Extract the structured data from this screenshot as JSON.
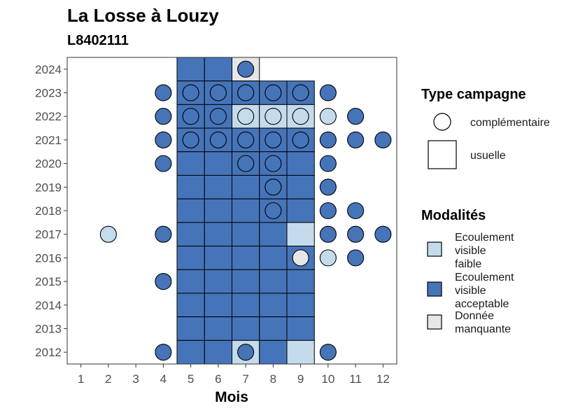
{
  "chart_data": {
    "type": "heatmap",
    "title": "La Losse à Louzy",
    "subtitle": "L8402111",
    "xlabel": "Mois",
    "ylabel": "",
    "x_ticks": [
      1,
      2,
      3,
      4,
      5,
      6,
      7,
      8,
      9,
      10,
      11,
      12
    ],
    "y_ticks": [
      2012,
      2013,
      2014,
      2015,
      2016,
      2017,
      2018,
      2019,
      2020,
      2021,
      2022,
      2023,
      2024
    ],
    "xlim": [
      0.5,
      12.5
    ],
    "ylim": [
      2011.5,
      2024.5
    ],
    "grid": false,
    "colors": {
      "Ecoulement visible faible": "#c4dbec",
      "Ecoulement visible acceptable": "#4674b9",
      "Donnée manquante": "#e6e6e6"
    },
    "usuelle": [
      {
        "year": 2024,
        "month": 5,
        "m": "acceptable"
      },
      {
        "year": 2024,
        "month": 6,
        "m": "acceptable"
      },
      {
        "year": 2024,
        "month": 7,
        "m": "manquante"
      },
      {
        "year": 2023,
        "month": 5,
        "m": "acceptable"
      },
      {
        "year": 2023,
        "month": 6,
        "m": "acceptable"
      },
      {
        "year": 2023,
        "month": 7,
        "m": "acceptable"
      },
      {
        "year": 2023,
        "month": 8,
        "m": "acceptable"
      },
      {
        "year": 2023,
        "month": 9,
        "m": "acceptable"
      },
      {
        "year": 2022,
        "month": 5,
        "m": "acceptable"
      },
      {
        "year": 2022,
        "month": 6,
        "m": "acceptable"
      },
      {
        "year": 2022,
        "month": 7,
        "m": "faible"
      },
      {
        "year": 2022,
        "month": 8,
        "m": "faible"
      },
      {
        "year": 2022,
        "month": 9,
        "m": "faible"
      },
      {
        "year": 2021,
        "month": 5,
        "m": "acceptable"
      },
      {
        "year": 2021,
        "month": 6,
        "m": "acceptable"
      },
      {
        "year": 2021,
        "month": 7,
        "m": "acceptable"
      },
      {
        "year": 2021,
        "month": 8,
        "m": "acceptable"
      },
      {
        "year": 2021,
        "month": 9,
        "m": "acceptable"
      },
      {
        "year": 2020,
        "month": 5,
        "m": "acceptable"
      },
      {
        "year": 2020,
        "month": 6,
        "m": "acceptable"
      },
      {
        "year": 2020,
        "month": 7,
        "m": "acceptable"
      },
      {
        "year": 2020,
        "month": 8,
        "m": "acceptable"
      },
      {
        "year": 2020,
        "month": 9,
        "m": "acceptable"
      },
      {
        "year": 2019,
        "month": 5,
        "m": "acceptable"
      },
      {
        "year": 2019,
        "month": 6,
        "m": "acceptable"
      },
      {
        "year": 2019,
        "month": 7,
        "m": "acceptable"
      },
      {
        "year": 2019,
        "month": 8,
        "m": "acceptable"
      },
      {
        "year": 2019,
        "month": 9,
        "m": "acceptable"
      },
      {
        "year": 2018,
        "month": 5,
        "m": "acceptable"
      },
      {
        "year": 2018,
        "month": 6,
        "m": "acceptable"
      },
      {
        "year": 2018,
        "month": 7,
        "m": "acceptable"
      },
      {
        "year": 2018,
        "month": 8,
        "m": "acceptable"
      },
      {
        "year": 2018,
        "month": 9,
        "m": "acceptable"
      },
      {
        "year": 2017,
        "month": 5,
        "m": "acceptable"
      },
      {
        "year": 2017,
        "month": 6,
        "m": "acceptable"
      },
      {
        "year": 2017,
        "month": 7,
        "m": "acceptable"
      },
      {
        "year": 2017,
        "month": 8,
        "m": "acceptable"
      },
      {
        "year": 2017,
        "month": 9,
        "m": "faible"
      },
      {
        "year": 2016,
        "month": 5,
        "m": "acceptable"
      },
      {
        "year": 2016,
        "month": 6,
        "m": "acceptable"
      },
      {
        "year": 2016,
        "month": 7,
        "m": "acceptable"
      },
      {
        "year": 2016,
        "month": 8,
        "m": "acceptable"
      },
      {
        "year": 2016,
        "month": 9,
        "m": "acceptable"
      },
      {
        "year": 2015,
        "month": 5,
        "m": "acceptable"
      },
      {
        "year": 2015,
        "month": 6,
        "m": "acceptable"
      },
      {
        "year": 2015,
        "month": 7,
        "m": "acceptable"
      },
      {
        "year": 2015,
        "month": 8,
        "m": "acceptable"
      },
      {
        "year": 2015,
        "month": 9,
        "m": "acceptable"
      },
      {
        "year": 2014,
        "month": 5,
        "m": "acceptable"
      },
      {
        "year": 2014,
        "month": 6,
        "m": "acceptable"
      },
      {
        "year": 2014,
        "month": 7,
        "m": "acceptable"
      },
      {
        "year": 2014,
        "month": 8,
        "m": "acceptable"
      },
      {
        "year": 2014,
        "month": 9,
        "m": "acceptable"
      },
      {
        "year": 2013,
        "month": 5,
        "m": "acceptable"
      },
      {
        "year": 2013,
        "month": 6,
        "m": "acceptable"
      },
      {
        "year": 2013,
        "month": 7,
        "m": "acceptable"
      },
      {
        "year": 2013,
        "month": 8,
        "m": "acceptable"
      },
      {
        "year": 2013,
        "month": 9,
        "m": "acceptable"
      },
      {
        "year": 2012,
        "month": 5,
        "m": "acceptable"
      },
      {
        "year": 2012,
        "month": 6,
        "m": "acceptable"
      },
      {
        "year": 2012,
        "month": 7,
        "m": "faible"
      },
      {
        "year": 2012,
        "month": 8,
        "m": "acceptable"
      },
      {
        "year": 2012,
        "month": 9,
        "m": "faible"
      }
    ],
    "complementaire": [
      {
        "year": 2024,
        "month": 7,
        "m": "acceptable"
      },
      {
        "year": 2023,
        "month": 4,
        "m": "acceptable"
      },
      {
        "year": 2023,
        "month": 5,
        "m": "acceptable"
      },
      {
        "year": 2023,
        "month": 6,
        "m": "acceptable"
      },
      {
        "year": 2023,
        "month": 7,
        "m": "acceptable"
      },
      {
        "year": 2023,
        "month": 8,
        "m": "acceptable"
      },
      {
        "year": 2023,
        "month": 9,
        "m": "acceptable"
      },
      {
        "year": 2023,
        "month": 10,
        "m": "acceptable"
      },
      {
        "year": 2022,
        "month": 4,
        "m": "acceptable"
      },
      {
        "year": 2022,
        "month": 5,
        "m": "acceptable"
      },
      {
        "year": 2022,
        "month": 6,
        "m": "acceptable"
      },
      {
        "year": 2022,
        "month": 7,
        "m": "faible"
      },
      {
        "year": 2022,
        "month": 8,
        "m": "faible"
      },
      {
        "year": 2022,
        "month": 9,
        "m": "faible"
      },
      {
        "year": 2022,
        "month": 10,
        "m": "faible"
      },
      {
        "year": 2022,
        "month": 11,
        "m": "acceptable"
      },
      {
        "year": 2021,
        "month": 4,
        "m": "acceptable"
      },
      {
        "year": 2021,
        "month": 5,
        "m": "acceptable"
      },
      {
        "year": 2021,
        "month": 6,
        "m": "acceptable"
      },
      {
        "year": 2021,
        "month": 7,
        "m": "acceptable"
      },
      {
        "year": 2021,
        "month": 8,
        "m": "acceptable"
      },
      {
        "year": 2021,
        "month": 9,
        "m": "acceptable"
      },
      {
        "year": 2021,
        "month": 10,
        "m": "acceptable"
      },
      {
        "year": 2021,
        "month": 11,
        "m": "acceptable"
      },
      {
        "year": 2021,
        "month": 12,
        "m": "acceptable"
      },
      {
        "year": 2020,
        "month": 4,
        "m": "acceptable"
      },
      {
        "year": 2020,
        "month": 7,
        "m": "acceptable"
      },
      {
        "year": 2020,
        "month": 8,
        "m": "acceptable"
      },
      {
        "year": 2020,
        "month": 10,
        "m": "acceptable"
      },
      {
        "year": 2019,
        "month": 8,
        "m": "acceptable"
      },
      {
        "year": 2019,
        "month": 10,
        "m": "acceptable"
      },
      {
        "year": 2018,
        "month": 8,
        "m": "acceptable"
      },
      {
        "year": 2018,
        "month": 10,
        "m": "acceptable"
      },
      {
        "year": 2018,
        "month": 11,
        "m": "acceptable"
      },
      {
        "year": 2017,
        "month": 2,
        "m": "faible"
      },
      {
        "year": 2017,
        "month": 4,
        "m": "acceptable"
      },
      {
        "year": 2017,
        "month": 10,
        "m": "acceptable"
      },
      {
        "year": 2017,
        "month": 11,
        "m": "acceptable"
      },
      {
        "year": 2017,
        "month": 12,
        "m": "acceptable"
      },
      {
        "year": 2016,
        "month": 9,
        "m": "manquante"
      },
      {
        "year": 2016,
        "month": 10,
        "m": "faible"
      },
      {
        "year": 2016,
        "month": 11,
        "m": "acceptable"
      },
      {
        "year": 2015,
        "month": 4,
        "m": "acceptable"
      },
      {
        "year": 2012,
        "month": 4,
        "m": "acceptable"
      },
      {
        "year": 2012,
        "month": 7,
        "m": "acceptable"
      },
      {
        "year": 2012,
        "month": 10,
        "m": "acceptable"
      }
    ],
    "legend": {
      "placement": "right",
      "type_title": "Type campagne",
      "type_items": [
        "complémentaire",
        "usuelle"
      ],
      "mod_title": "Modalités",
      "mod_items": [
        {
          "key": "faible",
          "lines": [
            "Ecoulement",
            "visible",
            "faible"
          ]
        },
        {
          "key": "acceptable",
          "lines": [
            "Ecoulement",
            "visible",
            "acceptable"
          ]
        },
        {
          "key": "manquante",
          "lines": [
            "Donnée",
            "manquante"
          ]
        }
      ]
    }
  }
}
